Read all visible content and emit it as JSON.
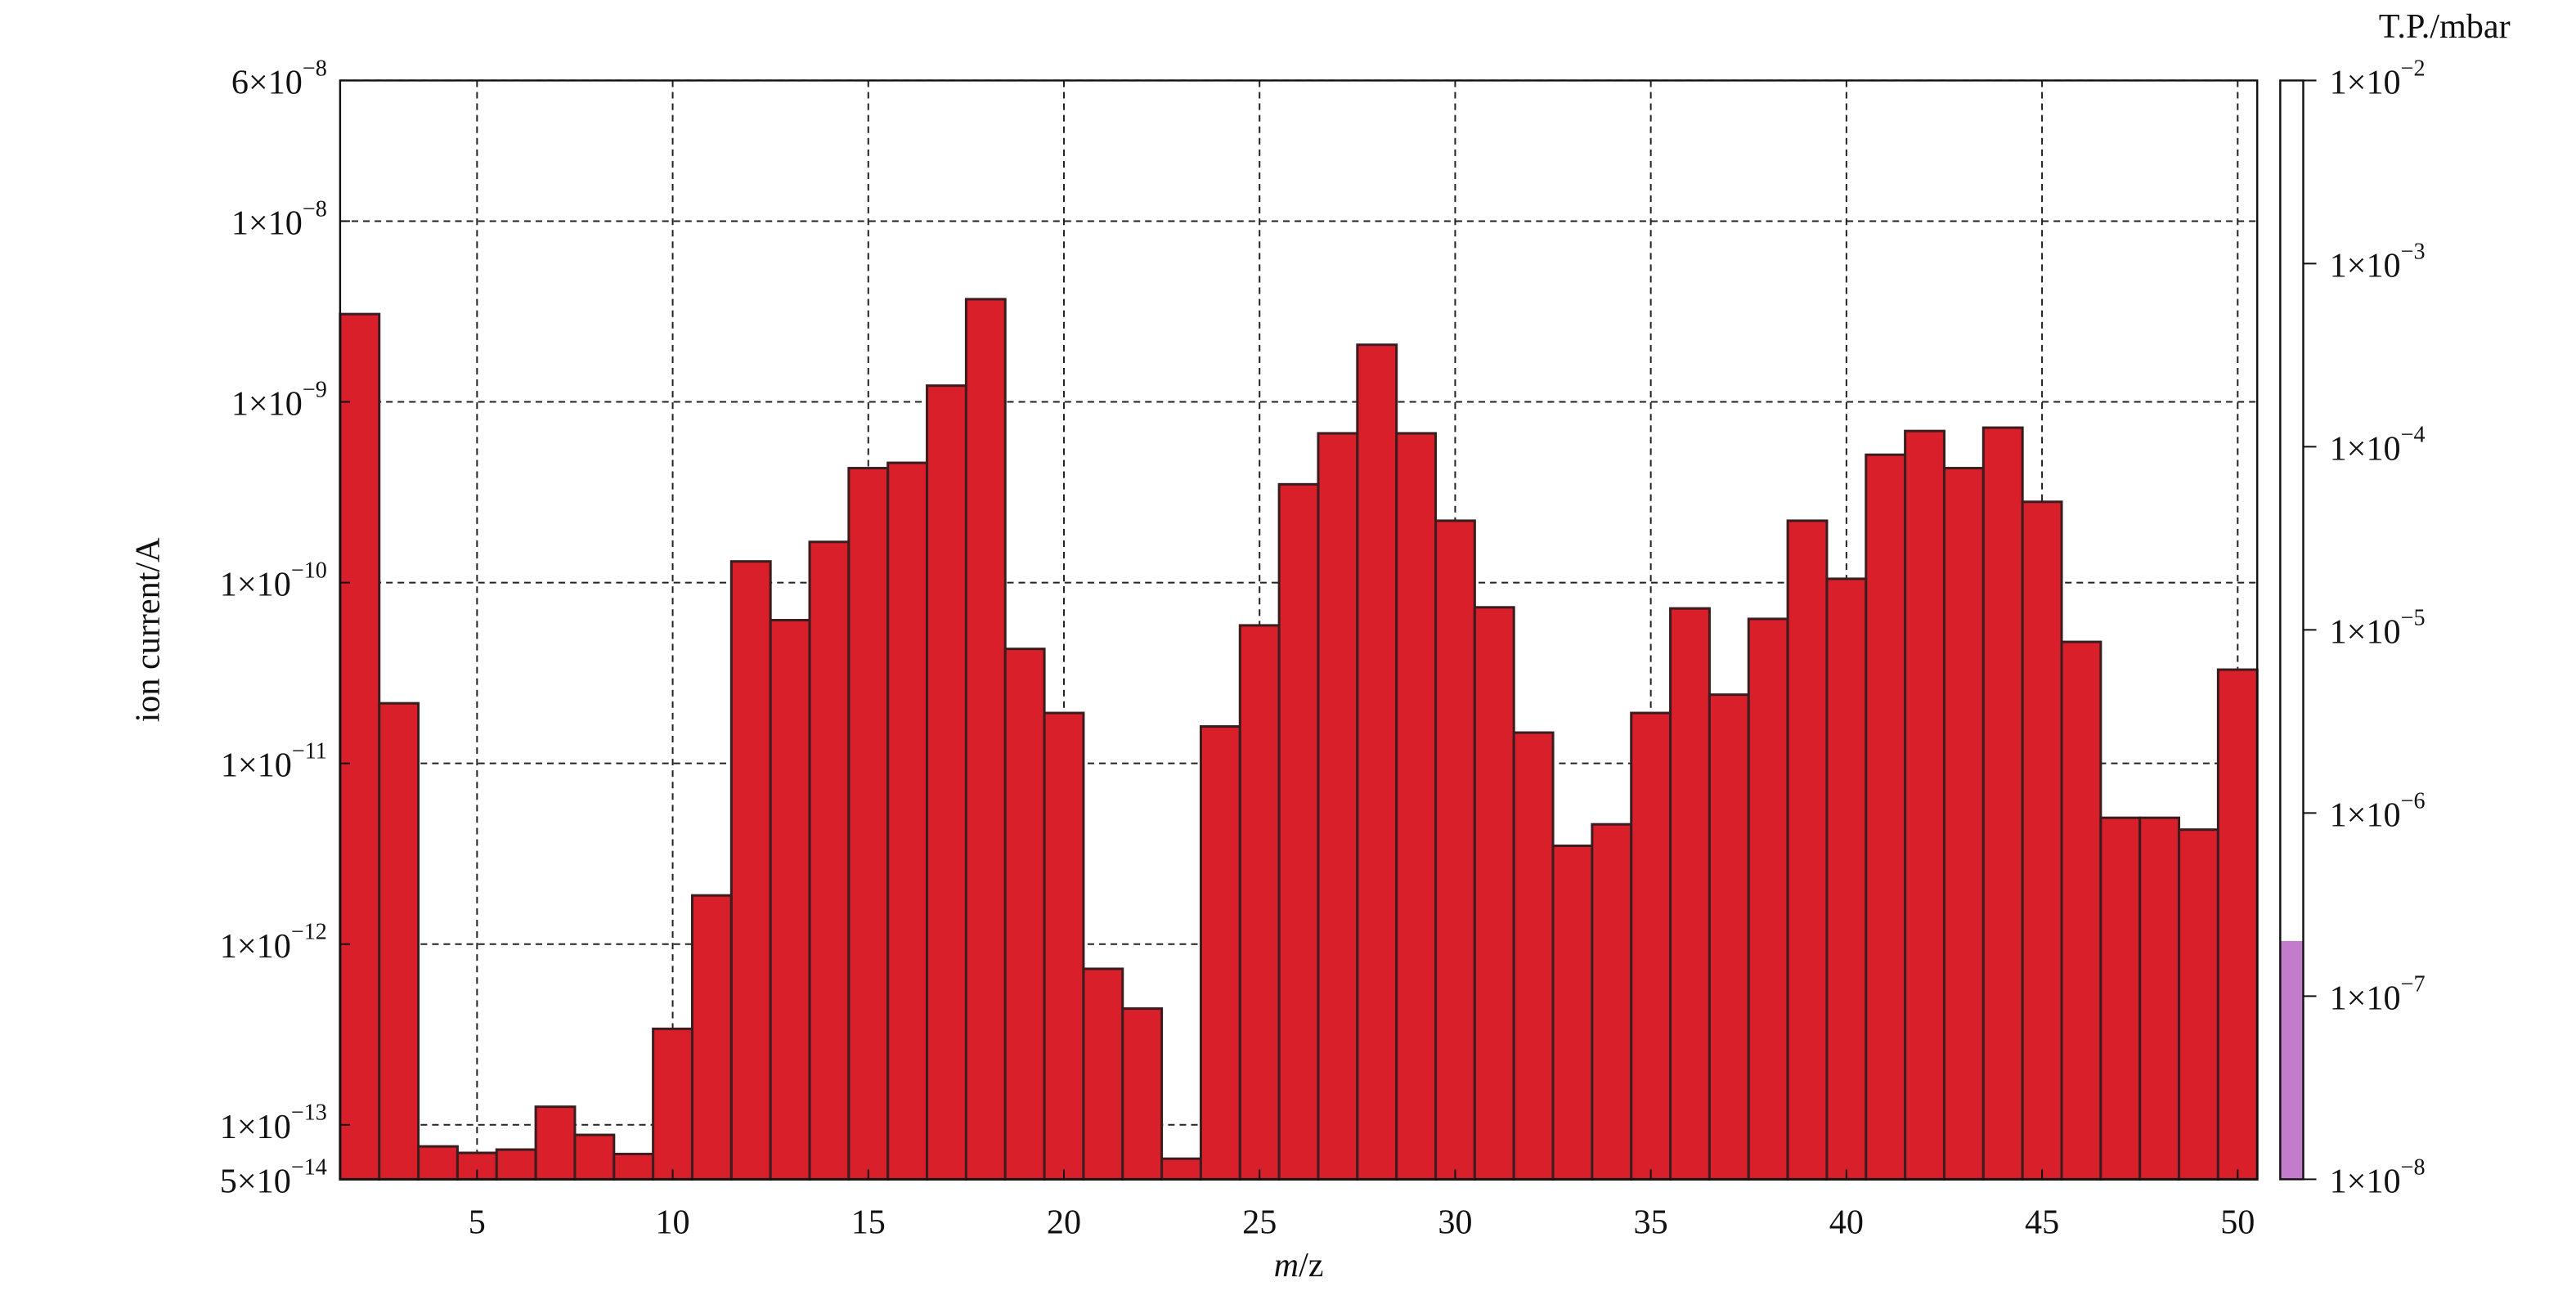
{
  "chart_data": {
    "type": "bar",
    "x_label": "m/z",
    "y_label": "ion current/A",
    "x": [
      2,
      3,
      4,
      5,
      6,
      7,
      8,
      9,
      10,
      11,
      12,
      13,
      14,
      15,
      16,
      17,
      18,
      19,
      20,
      21,
      22,
      23,
      24,
      25,
      26,
      27,
      28,
      29,
      30,
      31,
      32,
      33,
      34,
      35,
      36,
      37,
      38,
      39,
      40,
      41,
      42,
      43,
      44,
      45,
      46,
      47,
      48,
      49,
      50
    ],
    "values": [
      3.06e-09,
      2.15e-11,
      7.6e-14,
      7e-14,
      7.3e-14,
      1.26e-13,
      8.8e-14,
      6.9e-14,
      3.4e-13,
      1.86e-12,
      1.31e-10,
      6.2e-11,
      1.68e-10,
      4.3e-10,
      4.6e-10,
      1.23e-09,
      3.7e-09,
      4.3e-11,
      1.9e-11,
      7.3e-13,
      4.4e-13,
      6.5e-14,
      1.6e-11,
      5.8e-11,
      3.5e-10,
      6.7e-10,
      2.07e-09,
      6.7e-10,
      2.2e-10,
      7.3e-11,
      1.48e-11,
      3.5e-12,
      4.6e-12,
      1.9e-11,
      7.2e-11,
      2.4e-11,
      6.3e-11,
      2.2e-10,
      1.05e-10,
      5.1e-10,
      6.9e-10,
      4.3e-10,
      7.2e-10,
      2.8e-10,
      4.7e-11,
      5e-12,
      5e-12,
      4.3e-12,
      3.3e-11
    ],
    "color": "#d81f2a",
    "xlim": [
      1.5,
      50.5
    ],
    "xticks": [
      5,
      10,
      15,
      20,
      25,
      30,
      35,
      40,
      45,
      50
    ],
    "ylim": [
      5e-14,
      6e-08
    ],
    "y_scale": "log",
    "yticks": [
      {
        "value": 6e-08,
        "label": "6×10−8"
      },
      {
        "value": 1e-08,
        "label": "1×10−8"
      },
      {
        "value": 1e-09,
        "label": "1×10−9"
      },
      {
        "value": 1e-10,
        "label": "1×10−10"
      },
      {
        "value": 1e-11,
        "label": "1×10−11"
      },
      {
        "value": 1e-12,
        "label": "1×10−12"
      },
      {
        "value": 1e-13,
        "label": "1×10−13"
      },
      {
        "value": 5e-14,
        "label": "5×10−14"
      }
    ],
    "grid": true,
    "colorbar": {
      "label": "T.P./mbar",
      "scale": "log",
      "lim": [
        1e-08,
        0.01
      ],
      "value": 2e-07,
      "color": "#c27ccb",
      "ticks": [
        {
          "value": 0.01,
          "label": "1×10−2"
        },
        {
          "value": 0.001,
          "label": "1×10−3"
        },
        {
          "value": 0.0001,
          "label": "1×10−4"
        },
        {
          "value": 1e-05,
          "label": "1×10−5"
        },
        {
          "value": 1e-06,
          "label": "1×10−6"
        },
        {
          "value": 1e-07,
          "label": "1×10−7"
        },
        {
          "value": 1e-08,
          "label": "1×10−8"
        }
      ]
    }
  }
}
